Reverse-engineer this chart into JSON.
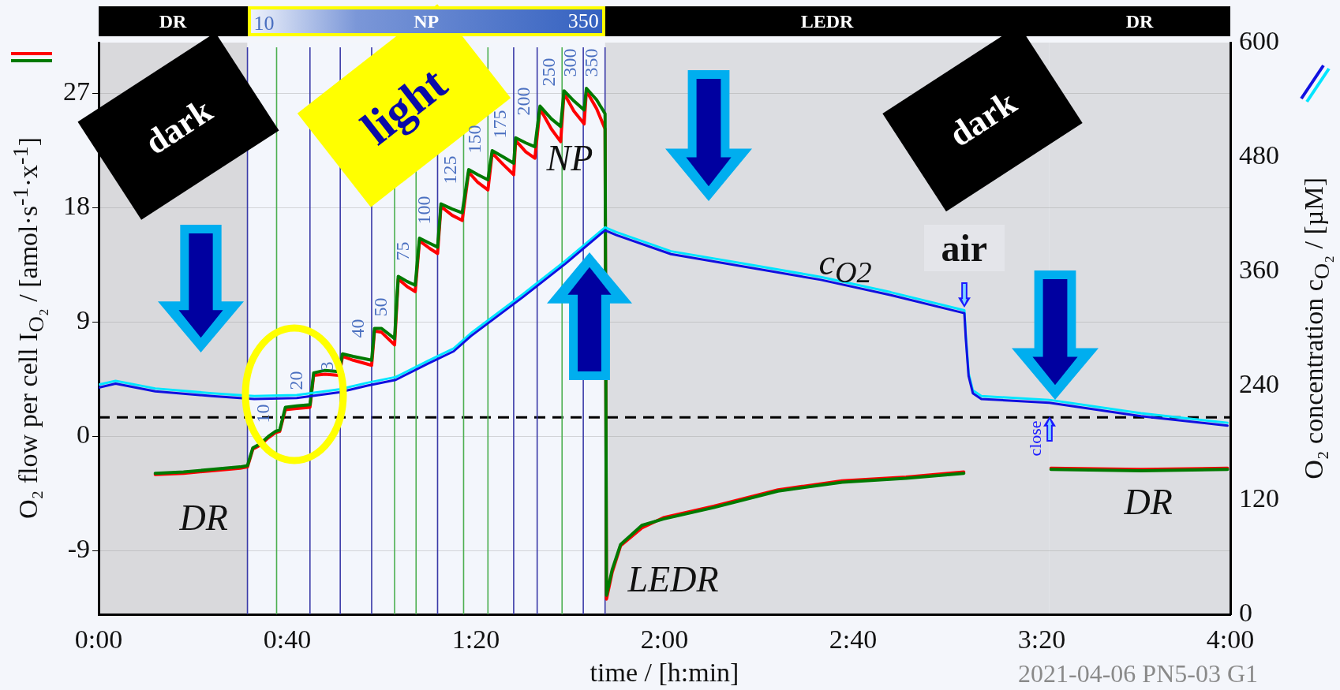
{
  "chart_data": {
    "type": "line",
    "xlabel": "time / [h:min]",
    "ylabel": "O₂ flow per cell I$_{O₂}$ / [amol·s$^{-1}$·x$^{-1}$]",
    "y2label": "O₂ concentration c$_{O₂}$ / [µM]",
    "xlim": [
      0,
      4
    ],
    "xticks": [
      {
        "value": 0,
        "label": "0:00"
      },
      {
        "value": 0.6667,
        "label": "0:40"
      },
      {
        "value": 1.3333,
        "label": "1:20"
      },
      {
        "value": 2,
        "label": "2:00"
      },
      {
        "value": 2.6667,
        "label": "2:40"
      },
      {
        "value": 3.3333,
        "label": "3:20"
      },
      {
        "value": 4,
        "label": "4:00"
      }
    ],
    "ylim": [
      -14,
      31
    ],
    "yticks": [
      -9,
      0,
      9,
      18,
      27
    ],
    "y2lim": [
      0,
      600
    ],
    "y2ticks": [
      0,
      120,
      240,
      360,
      480,
      600
    ],
    "grid": "y",
    "legend": false,
    "marker": "none",
    "series": [
      {
        "color": "#ff0000",
        "x": [
          0.2,
          0.3,
          0.4,
          0.5,
          0.526,
          0.545,
          0.57,
          0.6,
          0.625,
          0.64,
          0.66,
          0.7,
          0.747,
          0.76,
          0.8,
          0.85,
          0.862,
          0.9,
          0.965,
          0.975,
          1.0,
          1.046,
          1.059,
          1.09,
          1.119,
          1.134,
          1.17,
          1.198,
          1.21,
          1.25,
          1.285,
          1.308,
          1.34,
          1.376,
          1.391,
          1.43,
          1.467,
          1.474,
          1.51,
          1.542,
          1.56,
          1.6,
          1.633,
          1.645,
          1.68,
          1.716,
          1.724,
          1.76,
          1.79,
          1.795,
          1.815,
          1.845,
          1.92,
          1.996,
          2.174,
          2.401,
          2.628,
          2.854,
          3.058,
          3.2,
          3.366,
          3.684,
          3.99
        ],
        "values": [
          -3.0,
          -2.9,
          -2.7,
          -2.5,
          -2.4,
          -1.0,
          -0.7,
          -0.1,
          0.3,
          0.4,
          2.1,
          2.2,
          2.3,
          4.8,
          4.9,
          4.8,
          6.3,
          6.0,
          5.6,
          8.3,
          8.2,
          7.2,
          12.4,
          11.8,
          11.4,
          15.4,
          14.8,
          14.4,
          18.1,
          17.4,
          17.0,
          20.8,
          20.0,
          19.4,
          22.3,
          21.4,
          20.6,
          23.3,
          22.4,
          21.9,
          25.8,
          24.2,
          23.2,
          27.0,
          25.6,
          24.6,
          27.2,
          25.8,
          24.2,
          -12.8,
          -10.7,
          -8.6,
          -7.2,
          -6.4,
          -5.5,
          -4.2,
          -3.5,
          -3.2,
          -2.8,
          null,
          -2.5,
          -2.6,
          -2.5
        ]
      },
      {
        "color": "#007a00",
        "x": [
          0.2,
          0.3,
          0.4,
          0.5,
          0.526,
          0.545,
          0.57,
          0.6,
          0.625,
          0.64,
          0.66,
          0.7,
          0.747,
          0.76,
          0.8,
          0.85,
          0.862,
          0.9,
          0.965,
          0.975,
          1.0,
          1.046,
          1.059,
          1.09,
          1.119,
          1.134,
          1.17,
          1.198,
          1.21,
          1.25,
          1.285,
          1.308,
          1.34,
          1.376,
          1.391,
          1.43,
          1.467,
          1.474,
          1.51,
          1.542,
          1.56,
          1.6,
          1.633,
          1.645,
          1.68,
          1.716,
          1.724,
          1.76,
          1.79,
          1.795,
          1.815,
          1.845,
          1.92,
          1.996,
          2.174,
          2.401,
          2.628,
          2.854,
          3.058,
          3.2,
          3.366,
          3.684,
          3.99
        ],
        "values": [
          -2.9,
          -2.8,
          -2.6,
          -2.4,
          -2.3,
          -0.9,
          -0.6,
          0.0,
          0.4,
          0.5,
          2.3,
          2.4,
          2.5,
          5.0,
          5.2,
          5.1,
          6.5,
          6.3,
          6.0,
          8.5,
          8.5,
          7.7,
          12.6,
          12.2,
          11.9,
          15.6,
          15.2,
          14.9,
          18.3,
          17.9,
          17.6,
          21.0,
          20.6,
          20.2,
          22.5,
          22.0,
          21.5,
          23.5,
          23.1,
          22.8,
          26.0,
          25.0,
          24.4,
          27.2,
          26.4,
          25.7,
          27.4,
          26.5,
          25.4,
          -12.5,
          -10.5,
          -8.5,
          -7.0,
          -6.5,
          -5.6,
          -4.3,
          -3.6,
          -3.3,
          -2.9,
          null,
          -2.6,
          -2.7,
          -2.6
        ]
      },
      {
        "color": "#00e5ff",
        "axis": "y2",
        "x": [
          0,
          0.06,
          0.2,
          0.4,
          0.55,
          0.7,
          0.85,
          0.95,
          1.05,
          1.164,
          1.255,
          1.316,
          1.5,
          1.65,
          1.79,
          1.83,
          2.023,
          2.3,
          2.553,
          2.8,
          3.06,
          3.065,
          3.075,
          3.09,
          3.12,
          3.36,
          3.684,
          3.99
        ],
        "values": [
          241,
          245,
          237,
          232,
          229,
          230,
          236,
          243,
          249,
          266,
          279,
          295,
          336,
          371,
          406,
          401,
          381,
          367,
          354,
          338,
          319,
          293,
          253,
          235,
          229,
          225,
          211,
          201
        ]
      },
      {
        "color": "#1010e0",
        "axis": "y2",
        "x": [
          0,
          0.06,
          0.2,
          0.4,
          0.55,
          0.7,
          0.85,
          0.95,
          1.05,
          1.164,
          1.255,
          1.316,
          1.5,
          1.65,
          1.79,
          1.83,
          2.023,
          2.3,
          2.553,
          2.8,
          3.06,
          3.065,
          3.075,
          3.09,
          3.12,
          3.36,
          3.684,
          3.99
        ],
        "values": [
          238,
          242,
          234,
          229,
          226,
          227,
          233,
          240,
          246,
          263,
          276,
          292,
          333,
          368,
          403,
          398,
          378,
          364,
          351,
          335,
          316,
          290,
          250,
          232,
          226,
          222,
          208,
          198
        ]
      }
    ],
    "bands": [
      {
        "axis": "x",
        "from": 0,
        "to": 0.526,
        "label": "DR",
        "color": "#d9d9dc"
      },
      {
        "axis": "x",
        "from": 0.526,
        "to": 1.79,
        "label": "NP",
        "color": "#f3f6fc"
      },
      {
        "axis": "x",
        "from": 1.79,
        "to": 3.36,
        "label": "LEDR",
        "color": "#dcdde1"
      },
      {
        "axis": "x",
        "from": 3.36,
        "to": 4,
        "label": "DR",
        "color": "#dcdde1"
      }
    ],
    "ref_lines": [
      {
        "axis": "y",
        "value": 1.5,
        "color": "#000000",
        "line_style": "dashed"
      },
      {
        "axis": "x",
        "value": 0.526,
        "color": "#3a3aa8"
      },
      {
        "axis": "x",
        "value": 0.629,
        "color": "#4caf50"
      },
      {
        "axis": "x",
        "value": 0.747,
        "color": "#3a3aa8"
      },
      {
        "axis": "x",
        "value": 0.854,
        "color": "#3a3aa8"
      },
      {
        "axis": "x",
        "value": 0.965,
        "color": "#3a3aa8"
      },
      {
        "axis": "x",
        "value": 1.046,
        "color": "#4caf50"
      },
      {
        "axis": "x",
        "value": 1.122,
        "color": "#4caf50"
      },
      {
        "axis": "x",
        "value": 1.198,
        "color": "#3a3aa8"
      },
      {
        "axis": "x",
        "value": 1.29,
        "color": "#4caf50"
      },
      {
        "axis": "x",
        "value": 1.376,
        "color": "#4caf50"
      },
      {
        "axis": "x",
        "value": 1.467,
        "color": "#3a3aa8"
      },
      {
        "axis": "x",
        "value": 1.55,
        "color": "#3a3aa8"
      },
      {
        "axis": "x",
        "value": 1.638,
        "color": "#4caf50"
      },
      {
        "axis": "x",
        "value": 1.713,
        "color": "#3a3aa8"
      },
      {
        "axis": "x",
        "value": 1.79,
        "color": "#3a3aa8"
      }
    ],
    "annotations": [
      "dark",
      "light",
      "dark",
      "DR",
      "NP",
      "LEDR",
      "DR",
      "c$_{O2}$",
      "air",
      "close",
      {
        "text": "10",
        "x": 0.629,
        "y": 1.8
      },
      {
        "text": "20",
        "x": 0.747,
        "y": 4.4
      },
      {
        "text": "3",
        "x": 0.854,
        "y": 5.5
      },
      {
        "text": "40",
        "x": 0.965,
        "y": 8.5
      },
      {
        "text": "50",
        "x": 1.046,
        "y": 10.2
      },
      {
        "text": "75",
        "x": 1.122,
        "y": 14.6
      },
      {
        "text": "100",
        "x": 1.198,
        "y": 17.8
      },
      {
        "text": "125",
        "x": 1.29,
        "y": 21.0
      },
      {
        "text": "150",
        "x": 1.376,
        "y": 23.4
      },
      {
        "text": "175",
        "x": 1.467,
        "y": 24.6
      },
      {
        "text": "200",
        "x": 1.55,
        "y": 26.4
      },
      {
        "text": "250",
        "x": 1.638,
        "y": 28.7
      },
      {
        "text": "300",
        "x": 1.713,
        "y": 29.4
      },
      {
        "text": "350",
        "x": 1.79,
        "y": 29.4
      },
      "2021-04-06 PN5-03 G1"
    ]
  }
}
